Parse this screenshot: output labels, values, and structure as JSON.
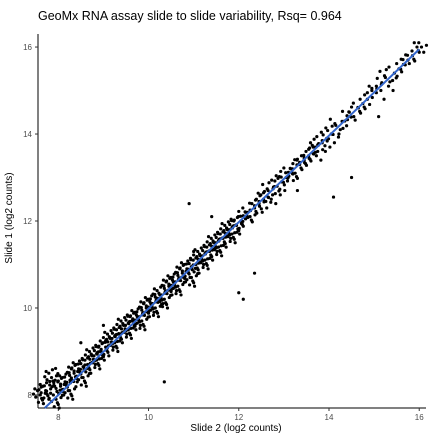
{
  "chart_data": {
    "type": "scatter",
    "title": "GeoMx RNA assay slide to slide variability, Rsq=  0.964",
    "xlabel": "Slide 2 (log2 counts)",
    "ylabel": "Slide 1 (log2 counts)",
    "xlim": [
      7.55,
      16.15
    ],
    "ylim": [
      7.7,
      16.3
    ],
    "xticks": [
      8,
      10,
      12,
      14,
      16
    ],
    "yticks": [
      8,
      10,
      12,
      14,
      16
    ],
    "grid": false,
    "fit_line": {
      "color": "#3366cc",
      "x": [
        7.7,
        16.0
      ],
      "y": [
        7.7,
        15.95
      ]
    },
    "points_color": "#000000",
    "outliers": {
      "x": [
        10.35,
        12.0,
        12.1,
        14.1,
        12.35,
        10.9,
        11.4,
        12.6,
        11.0,
        15.1,
        14.5,
        13.3,
        9.0,
        8.5
      ],
      "y": [
        8.3,
        10.35,
        10.2,
        12.55,
        10.8,
        12.4,
        12.1,
        12.45,
        11.3,
        14.4,
        13.0,
        12.7,
        9.6,
        9.2
      ]
    },
    "series": [
      {
        "x": [
          7.6,
          7.72,
          7.85,
          7.95,
          8.05,
          8.15,
          8.25,
          8.35,
          8.45,
          8.55,
          8.65,
          8.75,
          8.85,
          8.95,
          9.05,
          9.15,
          9.25,
          9.35,
          9.45,
          9.55,
          9.65,
          9.75,
          9.85,
          9.95,
          10.05,
          10.15,
          10.25,
          10.35,
          10.45,
          10.55,
          10.65,
          10.75,
          10.85,
          10.95,
          11.05,
          11.15,
          11.25,
          11.35,
          11.45,
          11.55,
          11.65,
          11.75,
          11.85,
          11.95,
          12.05,
          12.15,
          12.25,
          12.35,
          12.45,
          12.55,
          12.65,
          12.75,
          12.85,
          12.95,
          13.05,
          13.15,
          13.25,
          13.35,
          13.45,
          13.55,
          13.65,
          13.75,
          13.85,
          13.95,
          14.05,
          14.15,
          14.25,
          14.35,
          14.45,
          14.55,
          14.65,
          14.75,
          14.85,
          14.95,
          15.05,
          15.15,
          15.25,
          15.35,
          15.45,
          15.55,
          15.65,
          15.75,
          15.85,
          15.95,
          16.05
        ],
        "y": [
          8.0,
          8.1,
          8.4,
          7.9,
          8.2,
          8.3,
          8.1,
          8.5,
          8.6,
          8.4,
          8.7,
          8.9,
          8.8,
          9.0,
          9.1,
          9.3,
          9.2,
          9.4,
          9.6,
          9.5,
          9.7,
          9.8,
          9.7,
          10.0,
          10.1,
          10.0,
          10.3,
          10.2,
          10.5,
          10.6,
          10.5,
          10.8,
          10.9,
          10.7,
          11.0,
          11.2,
          11.1,
          11.3,
          11.5,
          11.4,
          11.6,
          11.8,
          11.7,
          11.9,
          12.0,
          12.2,
          12.1,
          12.3,
          12.4,
          12.5,
          12.7,
          12.6,
          12.8,
          12.9,
          13.0,
          13.2,
          13.1,
          13.3,
          13.4,
          13.5,
          13.7,
          13.6,
          13.8,
          13.9,
          14.0,
          14.2,
          14.1,
          14.3,
          14.5,
          14.4,
          14.6,
          14.7,
          14.8,
          15.0,
          15.1,
          15.0,
          15.3,
          15.2,
          15.4,
          15.5,
          15.6,
          15.7,
          15.8,
          16.0,
          16.0
        ]
      }
    ]
  }
}
